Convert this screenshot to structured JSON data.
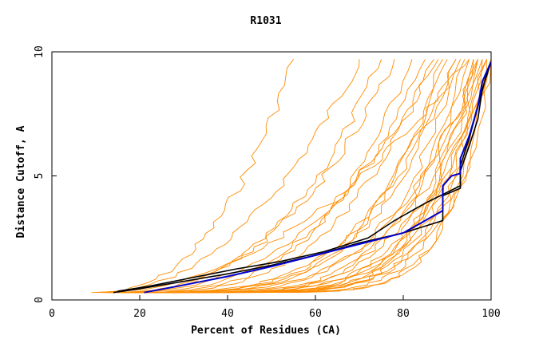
{
  "chart_data": {
    "type": "line",
    "title": "R1031",
    "xlabel": "Percent of Residues (CA)",
    "ylabel": "Distance Cutoff, A",
    "xlim": [
      0,
      100
    ],
    "ylim": [
      0,
      10
    ],
    "x_ticks": [
      0,
      20,
      40,
      60,
      80,
      100
    ],
    "y_ticks": [
      0,
      5,
      10
    ],
    "grid": false,
    "legend": "none",
    "colors": {
      "orange": "#ff8c00",
      "black": "#000000",
      "blue": "#0000cc"
    },
    "curve_params_orange": [
      [
        9,
        55,
        3.0
      ],
      [
        10,
        70,
        2.6
      ],
      [
        11,
        95,
        2.4
      ],
      [
        12,
        75,
        3.2
      ],
      [
        13,
        88,
        3.0
      ],
      [
        14,
        82,
        4.0
      ],
      [
        15,
        92,
        4.4
      ],
      [
        16,
        89,
        5.2
      ],
      [
        17,
        93,
        5.6
      ],
      [
        17,
        95,
        6.0
      ],
      [
        18,
        96,
        6.3
      ],
      [
        18,
        97,
        6.7
      ],
      [
        19,
        98,
        7.0
      ],
      [
        20,
        99,
        7.4
      ],
      [
        22,
        99,
        8.0
      ],
      [
        25,
        100,
        8.5
      ],
      [
        28,
        100,
        9.0
      ],
      [
        12,
        85,
        3.6
      ],
      [
        15,
        90,
        4.8
      ],
      [
        19,
        94,
        6.2
      ],
      [
        21,
        97,
        7.1
      ],
      [
        24,
        98,
        7.8
      ],
      [
        26,
        100,
        9.4
      ],
      [
        14,
        78,
        2.9
      ],
      [
        16,
        87,
        3.8
      ],
      [
        13,
        92,
        5.0
      ],
      [
        18,
        99,
        6.5
      ],
      [
        23,
        96,
        7.6
      ],
      [
        11,
        97,
        5.4
      ],
      [
        20,
        100,
        8.2
      ]
    ],
    "series": [
      {
        "color": "black",
        "points": [
          [
            14,
            0.3
          ],
          [
            20,
            0.45
          ],
          [
            30,
            0.75
          ],
          [
            40,
            1.05
          ],
          [
            50,
            1.4
          ],
          [
            60,
            1.8
          ],
          [
            70,
            2.3
          ],
          [
            80,
            2.7
          ],
          [
            89,
            3.2
          ],
          [
            89,
            4.2
          ],
          [
            93,
            4.5
          ],
          [
            93,
            5.2
          ],
          [
            95,
            6.2
          ],
          [
            97,
            7.3
          ],
          [
            98,
            8.5
          ],
          [
            100,
            9.6
          ]
        ]
      },
      {
        "color": "black",
        "points": [
          [
            15,
            0.35
          ],
          [
            22,
            0.55
          ],
          [
            32,
            0.9
          ],
          [
            42,
            1.25
          ],
          [
            52,
            1.55
          ],
          [
            62,
            1.95
          ],
          [
            72,
            2.5
          ],
          [
            78,
            3.2
          ],
          [
            85,
            3.9
          ],
          [
            93,
            4.6
          ],
          [
            93,
            5.4
          ],
          [
            95,
            6.5
          ],
          [
            97,
            7.8
          ],
          [
            99,
            9.1
          ],
          [
            100,
            9.6
          ]
        ]
      },
      {
        "color": "blue",
        "points": [
          [
            21,
            0.3
          ],
          [
            30,
            0.6
          ],
          [
            40,
            0.95
          ],
          [
            50,
            1.35
          ],
          [
            60,
            1.8
          ],
          [
            70,
            2.25
          ],
          [
            80,
            2.7
          ],
          [
            84,
            3.1
          ],
          [
            89,
            3.6
          ],
          [
            89,
            4.6
          ],
          [
            91,
            5.0
          ],
          [
            93,
            5.1
          ],
          [
            93,
            5.7
          ],
          [
            95,
            6.6
          ],
          [
            97,
            7.8
          ],
          [
            98,
            8.8
          ],
          [
            100,
            9.6
          ]
        ]
      }
    ]
  }
}
